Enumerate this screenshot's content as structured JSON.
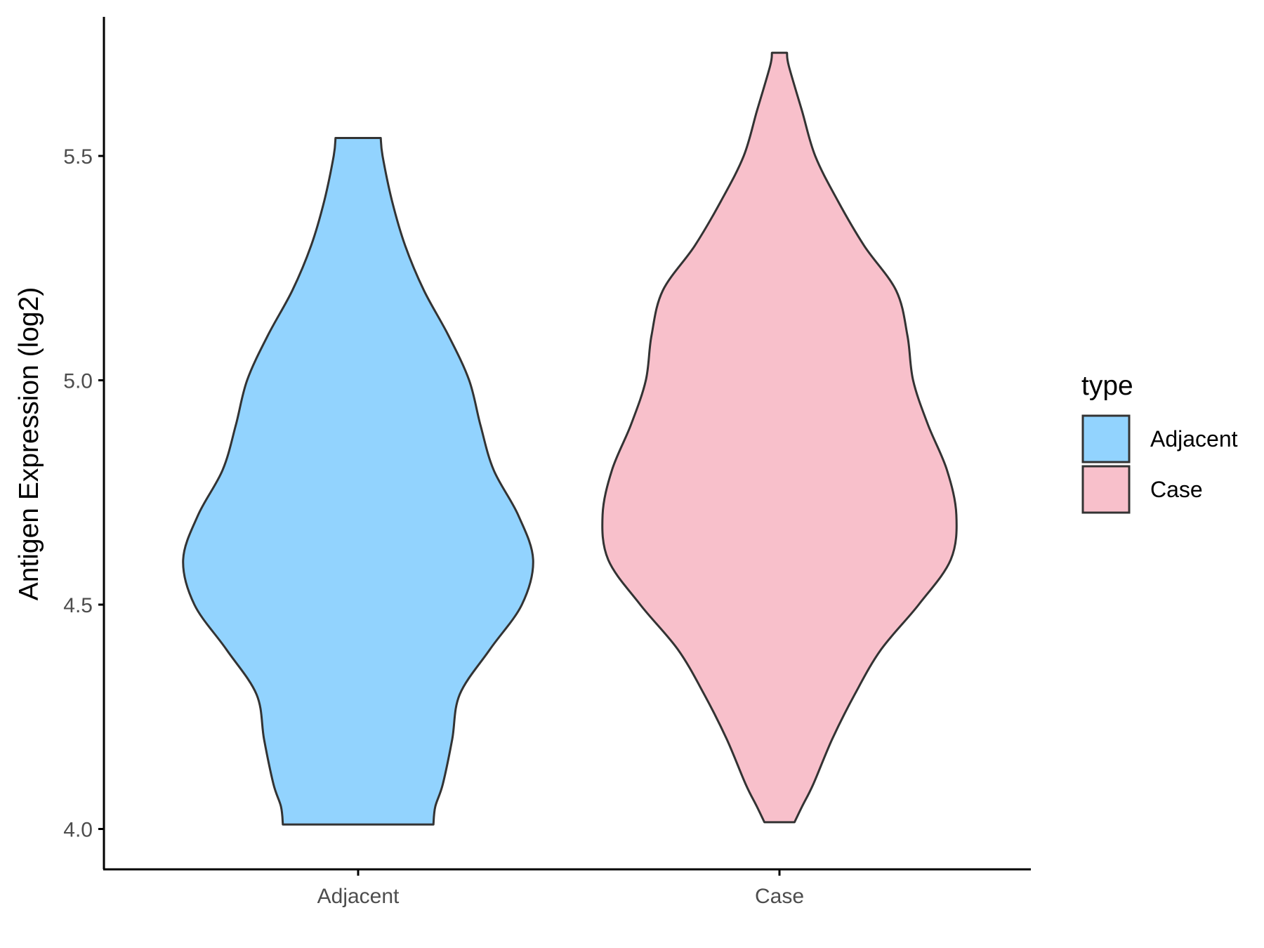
{
  "chart_data": {
    "type": "violin",
    "title": "",
    "xlabel": "",
    "ylabel": "Antigen Expression (log2)",
    "ylim": [
      3.91,
      5.81
    ],
    "yticks": [
      4.0,
      4.5,
      5.0,
      5.5
    ],
    "ytick_labels": [
      "4.0",
      "4.5",
      "5.0",
      "5.5"
    ],
    "categories": [
      "Adjacent",
      "Case"
    ],
    "grid": false,
    "legend": {
      "title": "type",
      "placement": "right",
      "entries": [
        {
          "label": "Adjacent",
          "color": "#92d3fe"
        },
        {
          "label": "Case",
          "color": "#f8c0cb"
        }
      ]
    },
    "outline_color": "#333333",
    "series": [
      {
        "name": "Adjacent",
        "color": "#92d3fe",
        "min": 4.01,
        "max": 5.54,
        "density": [
          [
            4.01,
            0.4
          ],
          [
            4.05,
            0.41
          ],
          [
            4.1,
            0.45
          ],
          [
            4.2,
            0.5
          ],
          [
            4.3,
            0.54
          ],
          [
            4.4,
            0.7
          ],
          [
            4.5,
            0.87
          ],
          [
            4.6,
            0.93
          ],
          [
            4.7,
            0.85
          ],
          [
            4.8,
            0.72
          ],
          [
            4.9,
            0.65
          ],
          [
            5.0,
            0.59
          ],
          [
            5.1,
            0.48
          ],
          [
            5.2,
            0.35
          ],
          [
            5.3,
            0.25
          ],
          [
            5.4,
            0.18
          ],
          [
            5.5,
            0.13
          ],
          [
            5.54,
            0.12
          ]
        ]
      },
      {
        "name": "Case",
        "color": "#f8c0cb",
        "min": 4.015,
        "max": 5.73,
        "density": [
          [
            4.015,
            0.08
          ],
          [
            4.05,
            0.12
          ],
          [
            4.1,
            0.18
          ],
          [
            4.2,
            0.28
          ],
          [
            4.3,
            0.4
          ],
          [
            4.4,
            0.54
          ],
          [
            4.5,
            0.74
          ],
          [
            4.6,
            0.91
          ],
          [
            4.7,
            0.94
          ],
          [
            4.8,
            0.89
          ],
          [
            4.9,
            0.79
          ],
          [
            5.0,
            0.71
          ],
          [
            5.1,
            0.68
          ],
          [
            5.2,
            0.62
          ],
          [
            5.3,
            0.45
          ],
          [
            5.4,
            0.31
          ],
          [
            5.5,
            0.19
          ],
          [
            5.6,
            0.12
          ],
          [
            5.7,
            0.05
          ],
          [
            5.73,
            0.04
          ]
        ]
      }
    ]
  }
}
